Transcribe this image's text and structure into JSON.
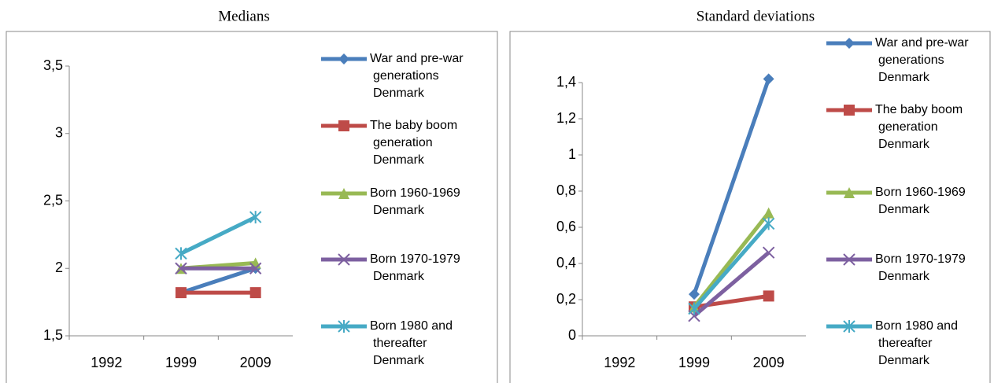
{
  "chart_data": [
    {
      "type": "line",
      "title": "Medians",
      "categories": [
        "1992",
        "1999",
        "2009"
      ],
      "ylim": [
        1.5,
        3.5
      ],
      "yticks": [
        {
          "value": 1.5,
          "label": "1,5"
        },
        2,
        {
          "value": 2.5,
          "label": "2,5"
        },
        3,
        {
          "value": 3.5,
          "label": "3,5"
        }
      ],
      "legend": "right",
      "series": [
        {
          "name": "War and pre-war generations Denmark",
          "color": "#4a7ebb",
          "marker": "diamond",
          "values": [
            null,
            1.82,
            2.0
          ]
        },
        {
          "name": "The baby boom generation Denmark",
          "color": "#be4b48",
          "marker": "square",
          "values": [
            null,
            1.82,
            1.82
          ]
        },
        {
          "name": "Born 1960-1969 Denmark",
          "color": "#98b954",
          "marker": "triangle",
          "values": [
            null,
            2.0,
            2.04
          ]
        },
        {
          "name": "Born 1970-1979 Denmark",
          "color": "#7d60a0",
          "marker": "x",
          "values": [
            null,
            2.0,
            2.0
          ]
        },
        {
          "name": "Born 1980 and thereafter Denmark",
          "color": "#46aac5",
          "marker": "star",
          "values": [
            null,
            2.11,
            2.38
          ]
        }
      ]
    },
    {
      "type": "line",
      "title": "Standard deviations",
      "categories": [
        "1992",
        "1999",
        "2009"
      ],
      "ylim": [
        0,
        1.4
      ],
      "yticks": [
        0,
        {
          "value": 0.2,
          "label": "0,2"
        },
        {
          "value": 0.4,
          "label": "0,4"
        },
        {
          "value": 0.6,
          "label": "0,6"
        },
        {
          "value": 0.8,
          "label": "0,8"
        },
        1,
        {
          "value": 1.2,
          "label": "1,2"
        },
        {
          "value": 1.4,
          "label": "1,4"
        }
      ],
      "legend": "right",
      "series": [
        {
          "name": "War and pre-war generations Denmark",
          "color": "#4a7ebb",
          "marker": "diamond",
          "values": [
            null,
            0.23,
            1.42
          ]
        },
        {
          "name": "The baby boom generation Denmark",
          "color": "#be4b48",
          "marker": "square",
          "values": [
            null,
            0.16,
            0.22
          ]
        },
        {
          "name": "Born 1960-1969 Denmark",
          "color": "#98b954",
          "marker": "triangle",
          "values": [
            null,
            0.16,
            0.68
          ]
        },
        {
          "name": "Born 1970-1979 Denmark",
          "color": "#7d60a0",
          "marker": "x",
          "values": [
            null,
            0.11,
            0.46
          ]
        },
        {
          "name": "Born 1980 and thereafter Denmark",
          "color": "#46aac5",
          "marker": "star",
          "values": [
            null,
            0.15,
            0.62
          ]
        }
      ]
    }
  ]
}
